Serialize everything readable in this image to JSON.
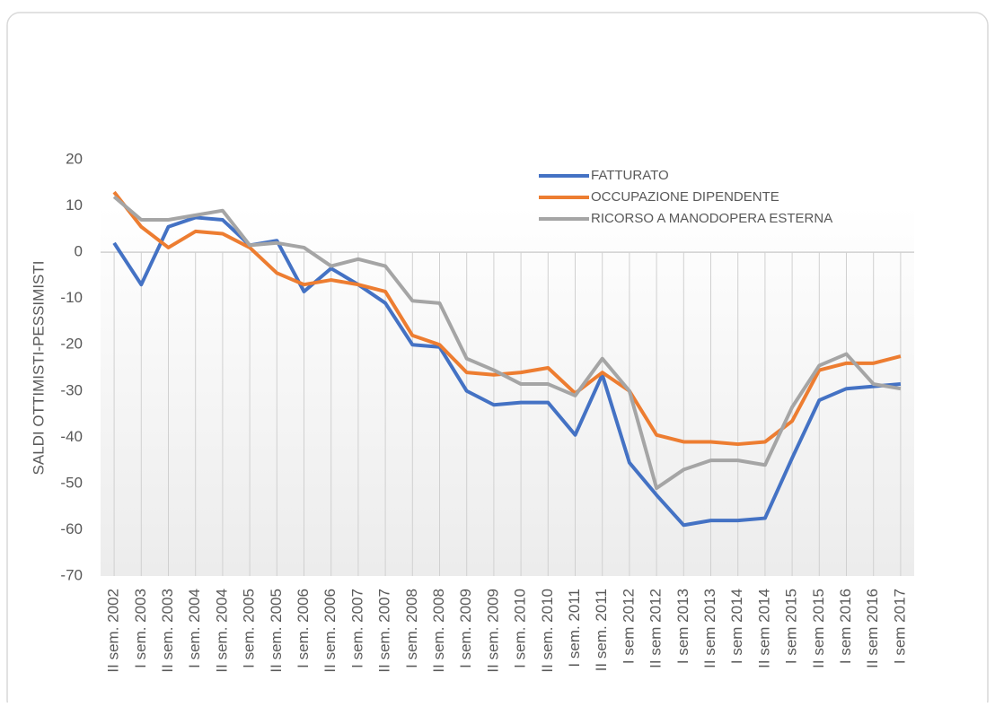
{
  "chart_data": {
    "type": "line",
    "y_label": "SALDI OTTIMISTI-PESSIMISTI",
    "categories": [
      "II sem. 2002",
      "I sem. 2003",
      "II sem. 2003",
      "I sem. 2004",
      "II sem. 2004",
      "I sem. 2005",
      "II sem. 2005",
      "I sem. 2006",
      "II sem. 2006",
      "I sem. 2007",
      "II sem. 2007",
      "I sem. 2008",
      "II sem. 2008",
      "I sem. 2009",
      "II sem. 2009",
      "I sem. 2010",
      "II sem. 2010",
      "I sem. 2011",
      "II sem. 2011",
      "I sem 2012",
      "II sem 2012",
      "I sem 2013",
      "II sem 2013",
      "I sem 2014",
      "II sem 2014",
      "I sem 2015",
      "II sem 2015",
      "I sem 2016",
      "II sem 2016",
      "I sem 2017"
    ],
    "series": [
      {
        "name": "FATTURATO",
        "color": "#4472c4",
        "values": [
          2,
          -7,
          5.5,
          7.5,
          7,
          1.5,
          2.5,
          -8.5,
          -3.5,
          -7,
          -11,
          -20,
          -20.5,
          -30,
          -33,
          -32.5,
          -32.5,
          -39.5,
          -26.5,
          -45.5,
          -52.5,
          -59,
          -58,
          -58,
          -57.5,
          -44.5,
          -32,
          -29.5,
          -29,
          -28.5
        ]
      },
      {
        "name": "OCCUPAZIONE DIPENDENTE",
        "color": "#ed7d31",
        "values": [
          13,
          5.5,
          1,
          4.5,
          4,
          1,
          -4.5,
          -7,
          -6,
          -7,
          -8.5,
          -18,
          -20,
          -26,
          -26.5,
          -26,
          -25,
          -30.5,
          -26,
          -30,
          -39.5,
          -41,
          -41,
          -41.5,
          -41,
          -36.5,
          -25.5,
          -24,
          -24,
          -22.5
        ]
      },
      {
        "name": "RICORSO A MANODOPERA ESTERNA",
        "color": "#a5a5a5",
        "values": [
          12,
          7,
          7,
          8,
          9,
          1.5,
          2,
          1,
          -3,
          -1.5,
          -3,
          -10.5,
          -11,
          -23,
          -25.5,
          -28.5,
          -28.5,
          -31,
          -23,
          -30,
          -51,
          -47,
          -45,
          -45,
          -46,
          -33.5,
          -24.5,
          -22,
          -28.5,
          -29.5
        ]
      }
    ],
    "ylim": [
      -70,
      20
    ],
    "yticks": [
      -70,
      -60,
      -50,
      -40,
      -30,
      -20,
      -10,
      0,
      10,
      20
    ],
    "legend": "top-right"
  }
}
